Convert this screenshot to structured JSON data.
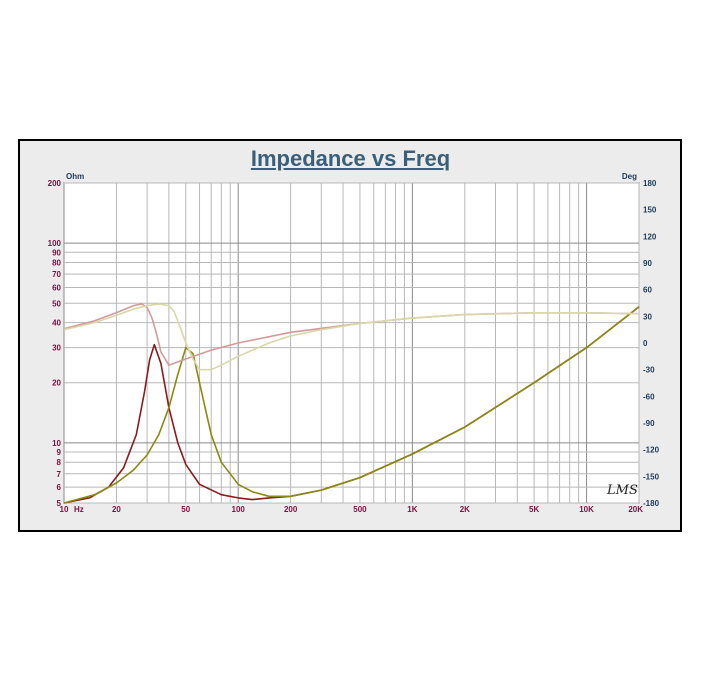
{
  "chart_data": {
    "type": "line",
    "title": "Impedance vs Freq",
    "xlabel": "Hz",
    "ylabel_left": "Ohm",
    "ylabel_right": "Deg",
    "x_scale": "log",
    "xlim": [
      10,
      20000
    ],
    "y_left_scale": "log",
    "y_left_lim": [
      5,
      200
    ],
    "y_right_lim": [
      -180,
      180
    ],
    "grid": true,
    "x_ticks": [
      {
        "value": 10,
        "label": "10"
      },
      {
        "value": 20,
        "label": "20"
      },
      {
        "value": 50,
        "label": "50"
      },
      {
        "value": 100,
        "label": "100"
      },
      {
        "value": 200,
        "label": "200"
      },
      {
        "value": 500,
        "label": "500"
      },
      {
        "value": 1000,
        "label": "1K"
      },
      {
        "value": 2000,
        "label": "2K"
      },
      {
        "value": 5000,
        "label": "5K"
      },
      {
        "value": 10000,
        "label": "10K"
      },
      {
        "value": 20000,
        "label": "20K"
      }
    ],
    "y_left_ticks": [
      {
        "value": 200,
        "label": "200"
      },
      {
        "value": 100,
        "label": "100"
      },
      {
        "value": 90,
        "label": "90"
      },
      {
        "value": 80,
        "label": "80"
      },
      {
        "value": 70,
        "label": "70"
      },
      {
        "value": 60,
        "label": "60"
      },
      {
        "value": 50,
        "label": "50"
      },
      {
        "value": 40,
        "label": "40"
      },
      {
        "value": 30,
        "label": "30"
      },
      {
        "value": 20,
        "label": "20"
      },
      {
        "value": 10,
        "label": "10"
      },
      {
        "value": 9,
        "label": "9"
      },
      {
        "value": 8,
        "label": "8"
      },
      {
        "value": 7,
        "label": "7"
      },
      {
        "value": 6,
        "label": "6"
      },
      {
        "value": 5,
        "label": "5"
      }
    ],
    "y_right_ticks": [
      180,
      150,
      120,
      90,
      60,
      30,
      0,
      -30,
      -60,
      -90,
      -120,
      -150,
      -180
    ],
    "series": [
      {
        "axis": "left",
        "color": "#8b1a1a",
        "x": [
          10,
          14,
          18,
          22,
          26,
          29,
          31,
          33,
          36,
          40,
          45,
          50,
          60,
          80,
          100,
          120,
          150,
          200,
          300,
          500,
          1000,
          2000,
          5000,
          10000,
          20000
        ],
        "y": [
          5.0,
          5.3,
          6.0,
          7.5,
          11.0,
          18.0,
          26.0,
          31.0,
          25.0,
          15.0,
          10.0,
          7.8,
          6.2,
          5.5,
          5.3,
          5.2,
          5.3,
          5.4,
          5.8,
          6.7,
          8.8,
          12.0,
          20.0,
          30.0,
          48.0
        ]
      },
      {
        "axis": "left",
        "color": "#8a8a12",
        "x": [
          10,
          15,
          20,
          25,
          30,
          35,
          40,
          45,
          50,
          55,
          60,
          70,
          80,
          100,
          120,
          150,
          200,
          300,
          500,
          1000,
          2000,
          5000,
          10000,
          20000
        ],
        "y": [
          5.0,
          5.5,
          6.3,
          7.3,
          8.7,
          11.0,
          15.0,
          22.0,
          30.0,
          28.0,
          20.0,
          11.0,
          8.0,
          6.2,
          5.7,
          5.4,
          5.4,
          5.8,
          6.7,
          8.8,
          12.0,
          20.0,
          30.0,
          48.0
        ]
      },
      {
        "axis": "right",
        "color": "#d49a9a",
        "x": [
          10,
          15,
          20,
          25,
          28,
          30,
          32,
          34,
          36,
          40,
          50,
          70,
          100,
          200,
          500,
          1000,
          2000,
          5000,
          10000,
          20000
        ],
        "y": [
          16,
          25,
          34,
          42,
          44,
          40,
          28,
          10,
          -10,
          -25,
          -18,
          -8,
          0,
          12,
          22,
          28,
          32,
          34,
          34,
          33
        ]
      },
      {
        "axis": "right",
        "color": "#d8d8a8",
        "x": [
          10,
          15,
          20,
          25,
          30,
          35,
          40,
          43,
          46,
          50,
          55,
          60,
          70,
          80,
          100,
          150,
          200,
          300,
          500,
          1000,
          2000,
          5000,
          10000,
          20000
        ],
        "y": [
          15,
          23,
          31,
          38,
          42,
          44,
          42,
          35,
          20,
          0,
          -18,
          -30,
          -30,
          -25,
          -15,
          0,
          8,
          15,
          22,
          28,
          32,
          34,
          34,
          33
        ]
      }
    ]
  },
  "logo_text": "LMS"
}
